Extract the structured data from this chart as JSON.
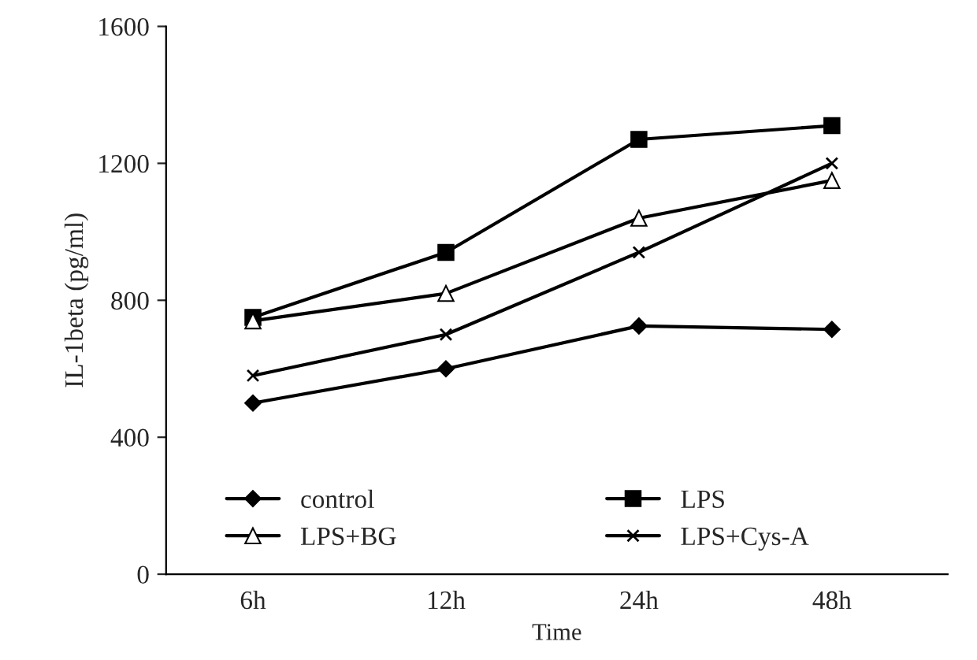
{
  "chart_data": {
    "type": "line",
    "xlabel": "Time",
    "ylabel": "IL-1beta (pg/ml)",
    "categories": [
      "6h",
      "12h",
      "24h",
      "48h"
    ],
    "series": [
      {
        "name": "control",
        "color": "#000000",
        "marker": "diamond",
        "values": [
          500,
          600,
          725,
          715
        ]
      },
      {
        "name": "LPS",
        "color": "#000000",
        "marker": "square",
        "values": [
          750,
          940,
          1270,
          1310
        ]
      },
      {
        "name": "LPS+BG",
        "color": "#000000",
        "marker": "triangle",
        "values": [
          740,
          820,
          1040,
          1150
        ]
      },
      {
        "name": "LPS+Cys-A",
        "color": "#000000",
        "marker": "cross",
        "values": [
          580,
          700,
          940,
          1200
        ]
      }
    ],
    "ylim": [
      0,
      1600
    ],
    "yticks": [
      0,
      400,
      800,
      1200,
      1600
    ],
    "grid": false,
    "legend": "bottom",
    "line_style": "solid"
  }
}
